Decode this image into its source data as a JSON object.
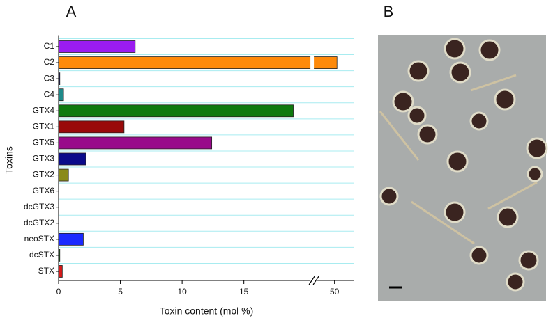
{
  "chart_data": {
    "type": "bar",
    "orientation": "horizontal",
    "panel_labels": [
      "A",
      "B"
    ],
    "xlabel": "Toxin content (mol %)",
    "ylabel": "Toxins",
    "categories": [
      "C1",
      "C2",
      "C3",
      "C4",
      "GTX4",
      "GTX1",
      "GTX5",
      "GTX3",
      "GTX2",
      "GTX6",
      "dcGTX3",
      "dcGTX2",
      "neoSTX",
      "dcSTX",
      "STX"
    ],
    "values": [
      6.2,
      50.2,
      0.1,
      0.4,
      19.0,
      5.3,
      12.4,
      2.2,
      0.8,
      0,
      0,
      0,
      2.0,
      0.1,
      0.3
    ],
    "colors": [
      "#9b1cf0",
      "#ff8a0a",
      "#1a1a66",
      "#1f8a8a",
      "#0e7a0e",
      "#990a0a",
      "#990a8a",
      "#0a0a8a",
      "#8a8a1a",
      "#333333",
      "#333333",
      "#333333",
      "#1a2aff",
      "#1a6a1a",
      "#d81a1a"
    ],
    "xlim": [
      0,
      51.6
    ],
    "xbreak": [
      20.5,
      48.5
    ],
    "xticks": [
      0,
      5,
      10,
      15,
      50
    ],
    "grid": true
  }
}
